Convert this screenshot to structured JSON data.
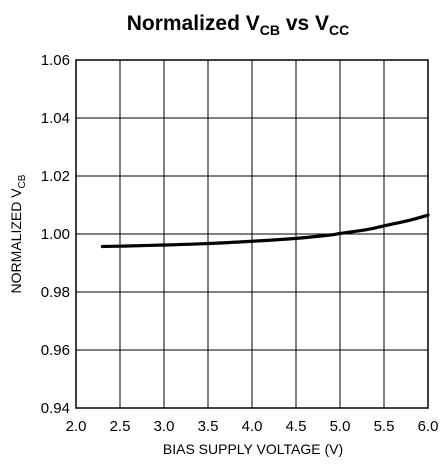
{
  "chart_data": {
    "type": "line",
    "title": {
      "main": "Normalized V",
      "main_sub": "CB",
      "mid": " vs V",
      "mid_sub": "CC"
    },
    "xlabel": "BIAS SUPPLY VOLTAGE (V)",
    "ylabel": {
      "main": "NORMALIZED V",
      "sub": "CB"
    },
    "xlim": [
      2.0,
      6.0
    ],
    "ylim": [
      0.94,
      1.06
    ],
    "x_ticks": [
      "2.0",
      "2.5",
      "3.0",
      "3.5",
      "4.0",
      "4.5",
      "5.0",
      "5.5",
      "6.0"
    ],
    "y_ticks": [
      "0.94",
      "0.96",
      "0.98",
      "1.00",
      "1.02",
      "1.04",
      "1.06"
    ],
    "grid": true,
    "line_color": "#000000",
    "series": [
      {
        "x": [
          2.3,
          2.5,
          3.0,
          3.5,
          4.0,
          4.5,
          4.9,
          5.0,
          5.3,
          5.5,
          5.8,
          6.0
        ],
        "y": [
          0.9957,
          0.9958,
          0.9962,
          0.9967,
          0.9975,
          0.9985,
          0.9997,
          1.0002,
          1.0015,
          1.0028,
          1.0048,
          1.0065
        ]
      }
    ]
  }
}
